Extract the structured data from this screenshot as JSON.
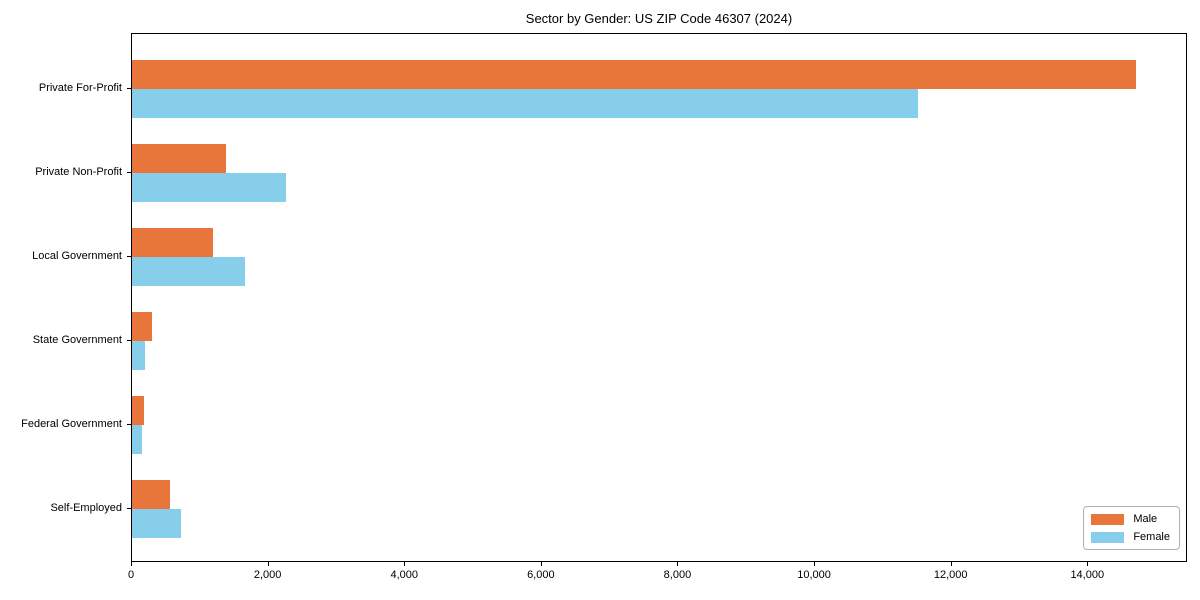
{
  "title": "Sector by Gender: US ZIP Code 46307 (2024)",
  "colors": {
    "male": "#e8763b",
    "female": "#87ceeb",
    "axis": "#000000",
    "legend_border": "#b0b0b0",
    "background": "#ffffff"
  },
  "legend": {
    "male_label": "Male",
    "female_label": "Female",
    "position": "lower right"
  },
  "chart_data": {
    "type": "bar",
    "orientation": "horizontal",
    "title": "Sector by Gender: US ZIP Code 46307 (2024)",
    "categories": [
      "Private For-Profit",
      "Private Non-Profit",
      "Local Government",
      "State Government",
      "Federal Government",
      "Self-Employed"
    ],
    "series": [
      {
        "name": "Male",
        "color": "#e8763b",
        "values": [
          14700,
          1370,
          1190,
          290,
          170,
          550
        ]
      },
      {
        "name": "Female",
        "color": "#87ceeb",
        "values": [
          11500,
          2260,
          1660,
          190,
          150,
          720
        ]
      }
    ],
    "xlabel": "",
    "ylabel": "",
    "xlim": [
      0,
      15460
    ],
    "xticks": [
      0,
      2000,
      4000,
      6000,
      8000,
      10000,
      12000,
      14000
    ],
    "xtick_labels": [
      "0",
      "2,000",
      "4,000",
      "6,000",
      "8,000",
      "10,000",
      "12,000",
      "14,000"
    ],
    "grid": false,
    "legend_position": "lower right"
  }
}
